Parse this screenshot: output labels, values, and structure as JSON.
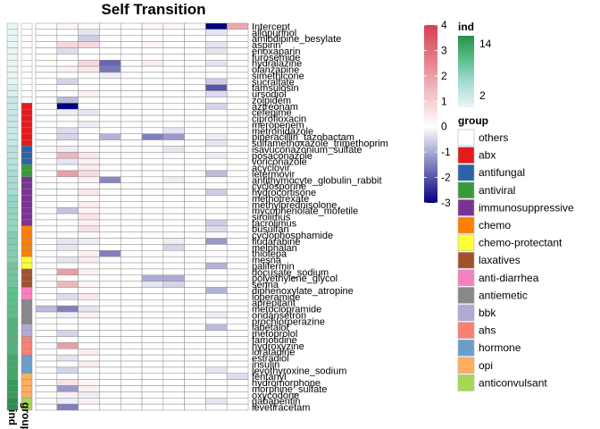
{
  "chart_data": {
    "type": "heatmap",
    "title": "Self Transition",
    "rows": [
      "Intercept",
      "allopurinol",
      "amlodipine_besylate",
      "aspirin",
      "enoxaparin",
      "furosemide",
      "hydralazine",
      "olanzapine",
      "simethicone",
      "sucralfate",
      "tamsulosin",
      "ursodiol",
      "zolpidem",
      "aztreonam",
      "cefepime",
      "ciprofloxacin",
      "meropenem",
      "metronidazole",
      "piperacillin_tazobactam",
      "sulfamethoxazole_trimethoprim",
      "isavuconazonium_sulfate",
      "posaconazole",
      "voriconazole",
      "acyclovir",
      "letermovir",
      "antithymocyte_globulin_rabbit",
      "cyclosporine",
      "hydrocortisone",
      "methotrexate",
      "methylprednisolone",
      "mycophenolate_mofetile",
      "sirolimus",
      "tacrolimus",
      "busulfan",
      "cyclophosphamide",
      "fludarabine",
      "melphalan",
      "thiotepa",
      "mesna",
      "palifermin",
      "docusate_sodium",
      "polyethylene_glycol",
      "senna",
      "diphenoxylate_atropine",
      "loperamide",
      "aprepitant",
      "metoclopramide",
      "ondansetron",
      "prochlorperazine",
      "labetalol",
      "metoprolol",
      "famotidine",
      "hydroxyzine",
      "loratadine",
      "estradiol",
      "insulin",
      "levothyroxine_sodium",
      "fentanyl",
      "hydromorphone",
      "morphine_sulfate",
      "oxycodone",
      "gabapentin",
      "levetiracetam"
    ],
    "ind_strip": [
      2,
      2,
      2,
      2,
      2,
      2,
      2,
      2,
      2,
      2,
      3,
      3,
      4,
      4,
      4,
      4,
      4,
      4,
      4,
      4,
      5,
      5,
      5,
      5,
      6,
      6,
      6,
      6,
      7,
      7,
      7,
      7,
      7,
      7,
      8,
      8,
      8,
      8,
      8,
      9,
      9,
      9,
      9,
      10,
      10,
      10,
      10,
      10,
      11,
      11,
      11,
      11,
      11,
      11,
      12,
      12,
      12,
      12,
      13,
      13,
      13,
      14,
      14
    ],
    "group_strip": [
      "others",
      "others",
      "others",
      "others",
      "others",
      "others",
      "others",
      "others",
      "others",
      "others",
      "others",
      "others",
      "others",
      "abx",
      "abx",
      "abx",
      "abx",
      "abx",
      "abx",
      "abx",
      "antifungal",
      "antifungal",
      "antifungal",
      "antiviral",
      "antiviral",
      "immunosuppressive",
      "immunosuppressive",
      "immunosuppressive",
      "immunosuppressive",
      "immunosuppressive",
      "immunosuppressive",
      "immunosuppressive",
      "immunosuppressive",
      "chemo",
      "chemo",
      "chemo",
      "chemo",
      "chemo",
      "chemo-protectant",
      "chemo-protectant",
      "laxatives",
      "laxatives",
      "laxatives",
      "anti-diarrhea",
      "anti-diarrhea",
      "antiemetic",
      "antiemetic",
      "antiemetic",
      "antiemetic",
      "bbk",
      "bbk",
      "ahs",
      "ahs",
      "ahs",
      "hormone",
      "hormone",
      "hormone",
      "opi",
      "opi",
      "opi",
      "opi",
      "anticonvulsant",
      "anticonvulsant"
    ],
    "values": [
      [
        0,
        0.2,
        0.1,
        0,
        0,
        0.2,
        0.2,
        0.1,
        -3,
        1.8
      ],
      [
        0,
        0,
        -0.3,
        0,
        0,
        0,
        0,
        0,
        -0.3,
        0
      ],
      [
        0,
        0,
        -0.6,
        0,
        0,
        0,
        0,
        0,
        0,
        0
      ],
      [
        0,
        0.8,
        0.8,
        0,
        0,
        0.2,
        0,
        0,
        -0.3,
        0
      ],
      [
        0,
        -0.4,
        0,
        0,
        0,
        0,
        0,
        0,
        -0.3,
        0
      ],
      [
        0,
        0,
        0,
        0,
        0,
        0,
        0,
        0,
        0,
        0
      ],
      [
        0,
        0,
        0.8,
        -1.8,
        0,
        0.4,
        0,
        0,
        -0.3,
        0
      ],
      [
        0,
        0.3,
        0.5,
        -1.6,
        0,
        0,
        0,
        0,
        0,
        0
      ],
      [
        0,
        0,
        0,
        -0.2,
        0,
        0,
        0,
        0,
        0,
        0
      ],
      [
        0,
        -0.5,
        0,
        0,
        0,
        0,
        0,
        0,
        -0.6,
        0
      ],
      [
        0,
        0,
        0,
        0,
        0,
        0,
        0,
        0,
        -2,
        0
      ],
      [
        0,
        0,
        0.3,
        0,
        0,
        0,
        0,
        0,
        -0.4,
        0
      ],
      [
        0,
        -0.8,
        0,
        0,
        0,
        0,
        0,
        0,
        0,
        0
      ],
      [
        0,
        -3,
        0,
        0,
        0,
        0,
        0,
        0,
        -0.5,
        0
      ],
      [
        0,
        -0.2,
        -0.3,
        0,
        0,
        0,
        0,
        0,
        0,
        0
      ],
      [
        0,
        0,
        0,
        0,
        0,
        0,
        0,
        0,
        0,
        0
      ],
      [
        0,
        0,
        -0.2,
        0,
        0,
        0,
        0,
        0,
        0,
        0
      ],
      [
        0,
        -0.4,
        0,
        0,
        0,
        0,
        -0.3,
        0,
        0,
        0
      ],
      [
        0,
        -0.5,
        0,
        -0.9,
        0,
        -1.5,
        -1.2,
        0,
        -0.2,
        0
      ],
      [
        0,
        0,
        0,
        0,
        0,
        0,
        0,
        0,
        -0.3,
        0
      ],
      [
        0,
        -0.2,
        0,
        0,
        0,
        0,
        -0.3,
        0,
        0,
        0
      ],
      [
        0,
        1.5,
        0.5,
        0,
        0,
        0,
        0,
        0,
        -0.2,
        0
      ],
      [
        0,
        -0.3,
        0.3,
        0,
        0,
        0,
        0,
        0,
        0,
        0
      ],
      [
        0,
        0,
        0.4,
        0,
        0,
        0,
        0,
        0,
        0,
        0
      ],
      [
        0,
        2,
        0.7,
        0,
        0,
        0,
        0,
        0,
        -0.8,
        0
      ],
      [
        0,
        0,
        0.3,
        -1.4,
        0,
        0,
        -0.2,
        0,
        0,
        0
      ],
      [
        0,
        0,
        0,
        0,
        0,
        0,
        0,
        0,
        0,
        0
      ],
      [
        0,
        0,
        0.5,
        0,
        0,
        0,
        0,
        0,
        -0.6,
        0
      ],
      [
        0,
        0,
        0,
        0,
        0,
        0,
        0,
        0,
        0,
        0
      ],
      [
        0,
        0,
        0.4,
        0,
        0,
        0,
        0,
        0,
        0,
        0
      ],
      [
        0,
        -0.7,
        0.2,
        0,
        0,
        0,
        0,
        0,
        0,
        0
      ],
      [
        0,
        0,
        0.5,
        0,
        0,
        0,
        0,
        0,
        0,
        0
      ],
      [
        0,
        0,
        0.3,
        0,
        0,
        0,
        0,
        0,
        -0.6,
        0
      ],
      [
        0,
        0,
        0.6,
        0,
        0,
        0,
        0,
        0,
        -0.4,
        0
      ],
      [
        0,
        0,
        0,
        0,
        0,
        0,
        0,
        0,
        0,
        0
      ],
      [
        0,
        -0.3,
        -0.2,
        0,
        0,
        0,
        -0.2,
        0,
        -1.2,
        0
      ],
      [
        0,
        -0.3,
        0,
        0,
        0,
        0,
        -0.5,
        0,
        0,
        0
      ],
      [
        0,
        0,
        0.3,
        -1.5,
        0,
        0,
        0,
        0,
        0,
        0
      ],
      [
        0,
        -0.3,
        0.4,
        0,
        0,
        0,
        0,
        0,
        0,
        0
      ],
      [
        0,
        0,
        0,
        0,
        0,
        0,
        0,
        0,
        -0.9,
        0
      ],
      [
        0,
        2,
        0.3,
        0,
        0,
        0,
        0,
        0,
        0,
        0
      ],
      [
        0,
        0,
        0,
        0,
        0,
        -1,
        -1,
        0,
        0,
        0
      ],
      [
        0,
        1.5,
        0.2,
        0,
        0,
        -0.3,
        -0.5,
        0,
        0,
        0
      ],
      [
        0,
        0,
        0,
        0,
        0,
        0,
        0,
        0,
        -0.9,
        0
      ],
      [
        0,
        -0.4,
        0.5,
        0,
        0,
        0,
        0,
        0,
        0,
        0
      ],
      [
        0,
        0,
        0,
        0,
        0,
        0,
        0,
        0,
        0,
        0
      ],
      [
        -0.8,
        -1.5,
        -0.3,
        0,
        0,
        0,
        0,
        0,
        0,
        0
      ],
      [
        0,
        -0.2,
        0.3,
        0,
        0,
        0,
        0,
        0,
        -0.2,
        0
      ],
      [
        0,
        0,
        0,
        0,
        0,
        0,
        0,
        0,
        0,
        0
      ],
      [
        0,
        0,
        0,
        0,
        0,
        0,
        0,
        0,
        -0.8,
        0
      ],
      [
        0,
        -0.5,
        0,
        0,
        0,
        0,
        0,
        0,
        0,
        0
      ],
      [
        0,
        0,
        0,
        0,
        0,
        0,
        0,
        0,
        0,
        0
      ],
      [
        0,
        2,
        0,
        0,
        0,
        0,
        0,
        0,
        0,
        0
      ],
      [
        0,
        0,
        0.4,
        0,
        0,
        0,
        0,
        0,
        0,
        0
      ],
      [
        0,
        -0.3,
        0,
        0,
        0,
        0,
        0,
        0,
        0,
        0
      ],
      [
        0,
        0,
        0.4,
        0,
        0,
        0,
        0,
        0,
        0,
        0
      ],
      [
        0,
        -0.5,
        0,
        0,
        0,
        0,
        0,
        0,
        -0.3,
        0
      ],
      [
        0,
        0,
        0,
        0,
        0,
        0,
        0,
        0,
        0,
        -0.4
      ],
      [
        0,
        0.6,
        0.2,
        0,
        0,
        0,
        0,
        0,
        0,
        0
      ],
      [
        0,
        -1.2,
        0.3,
        0,
        0,
        0,
        0,
        0,
        0,
        0
      ],
      [
        0,
        0.3,
        -0.2,
        0,
        0,
        0,
        0,
        0,
        0,
        0
      ],
      [
        0,
        -0.2,
        0.3,
        0,
        0,
        0,
        0,
        0,
        -0.3,
        0
      ],
      [
        0,
        -1.5,
        0,
        0,
        0,
        0,
        0,
        0,
        0,
        0
      ]
    ],
    "color_scale": {
      "min": -3,
      "max": 4,
      "low": "#00007f",
      "mid": "#ffffff",
      "high": "#d53e4f"
    },
    "colorbar_ticks": [
      4,
      3,
      2,
      1,
      0,
      -1,
      -2,
      -3
    ],
    "strip_labels": {
      "ind": "ind",
      "group": "group"
    },
    "legends": {
      "ind": {
        "title": "ind",
        "labels": [
          "14",
          "2"
        ],
        "colors": [
          "#2b8f4a",
          "#5cbf8c",
          "#a8dcd6",
          "#e8f6f6"
        ]
      },
      "group": {
        "title": "group",
        "items": [
          {
            "label": "others",
            "color": "#ffffff"
          },
          {
            "label": "abx",
            "color": "#e41a1c"
          },
          {
            "label": "antifungal",
            "color": "#2b63a8"
          },
          {
            "label": "antiviral",
            "color": "#3a9a3a"
          },
          {
            "label": "immunosuppressive",
            "color": "#7b3294"
          },
          {
            "label": "chemo",
            "color": "#ff7f00"
          },
          {
            "label": "chemo-protectant",
            "color": "#ffff33"
          },
          {
            "label": "laxatives",
            "color": "#a0522d"
          },
          {
            "label": "anti-diarrhea",
            "color": "#f781bf"
          },
          {
            "label": "antiemetic",
            "color": "#888888"
          },
          {
            "label": "bbk",
            "color": "#b3a9d6"
          },
          {
            "label": "ahs",
            "color": "#fb8072"
          },
          {
            "label": "hormone",
            "color": "#6a9fcd"
          },
          {
            "label": "opi",
            "color": "#fdae61"
          },
          {
            "label": "anticonvulsant",
            "color": "#a6d854"
          }
        ]
      }
    }
  }
}
